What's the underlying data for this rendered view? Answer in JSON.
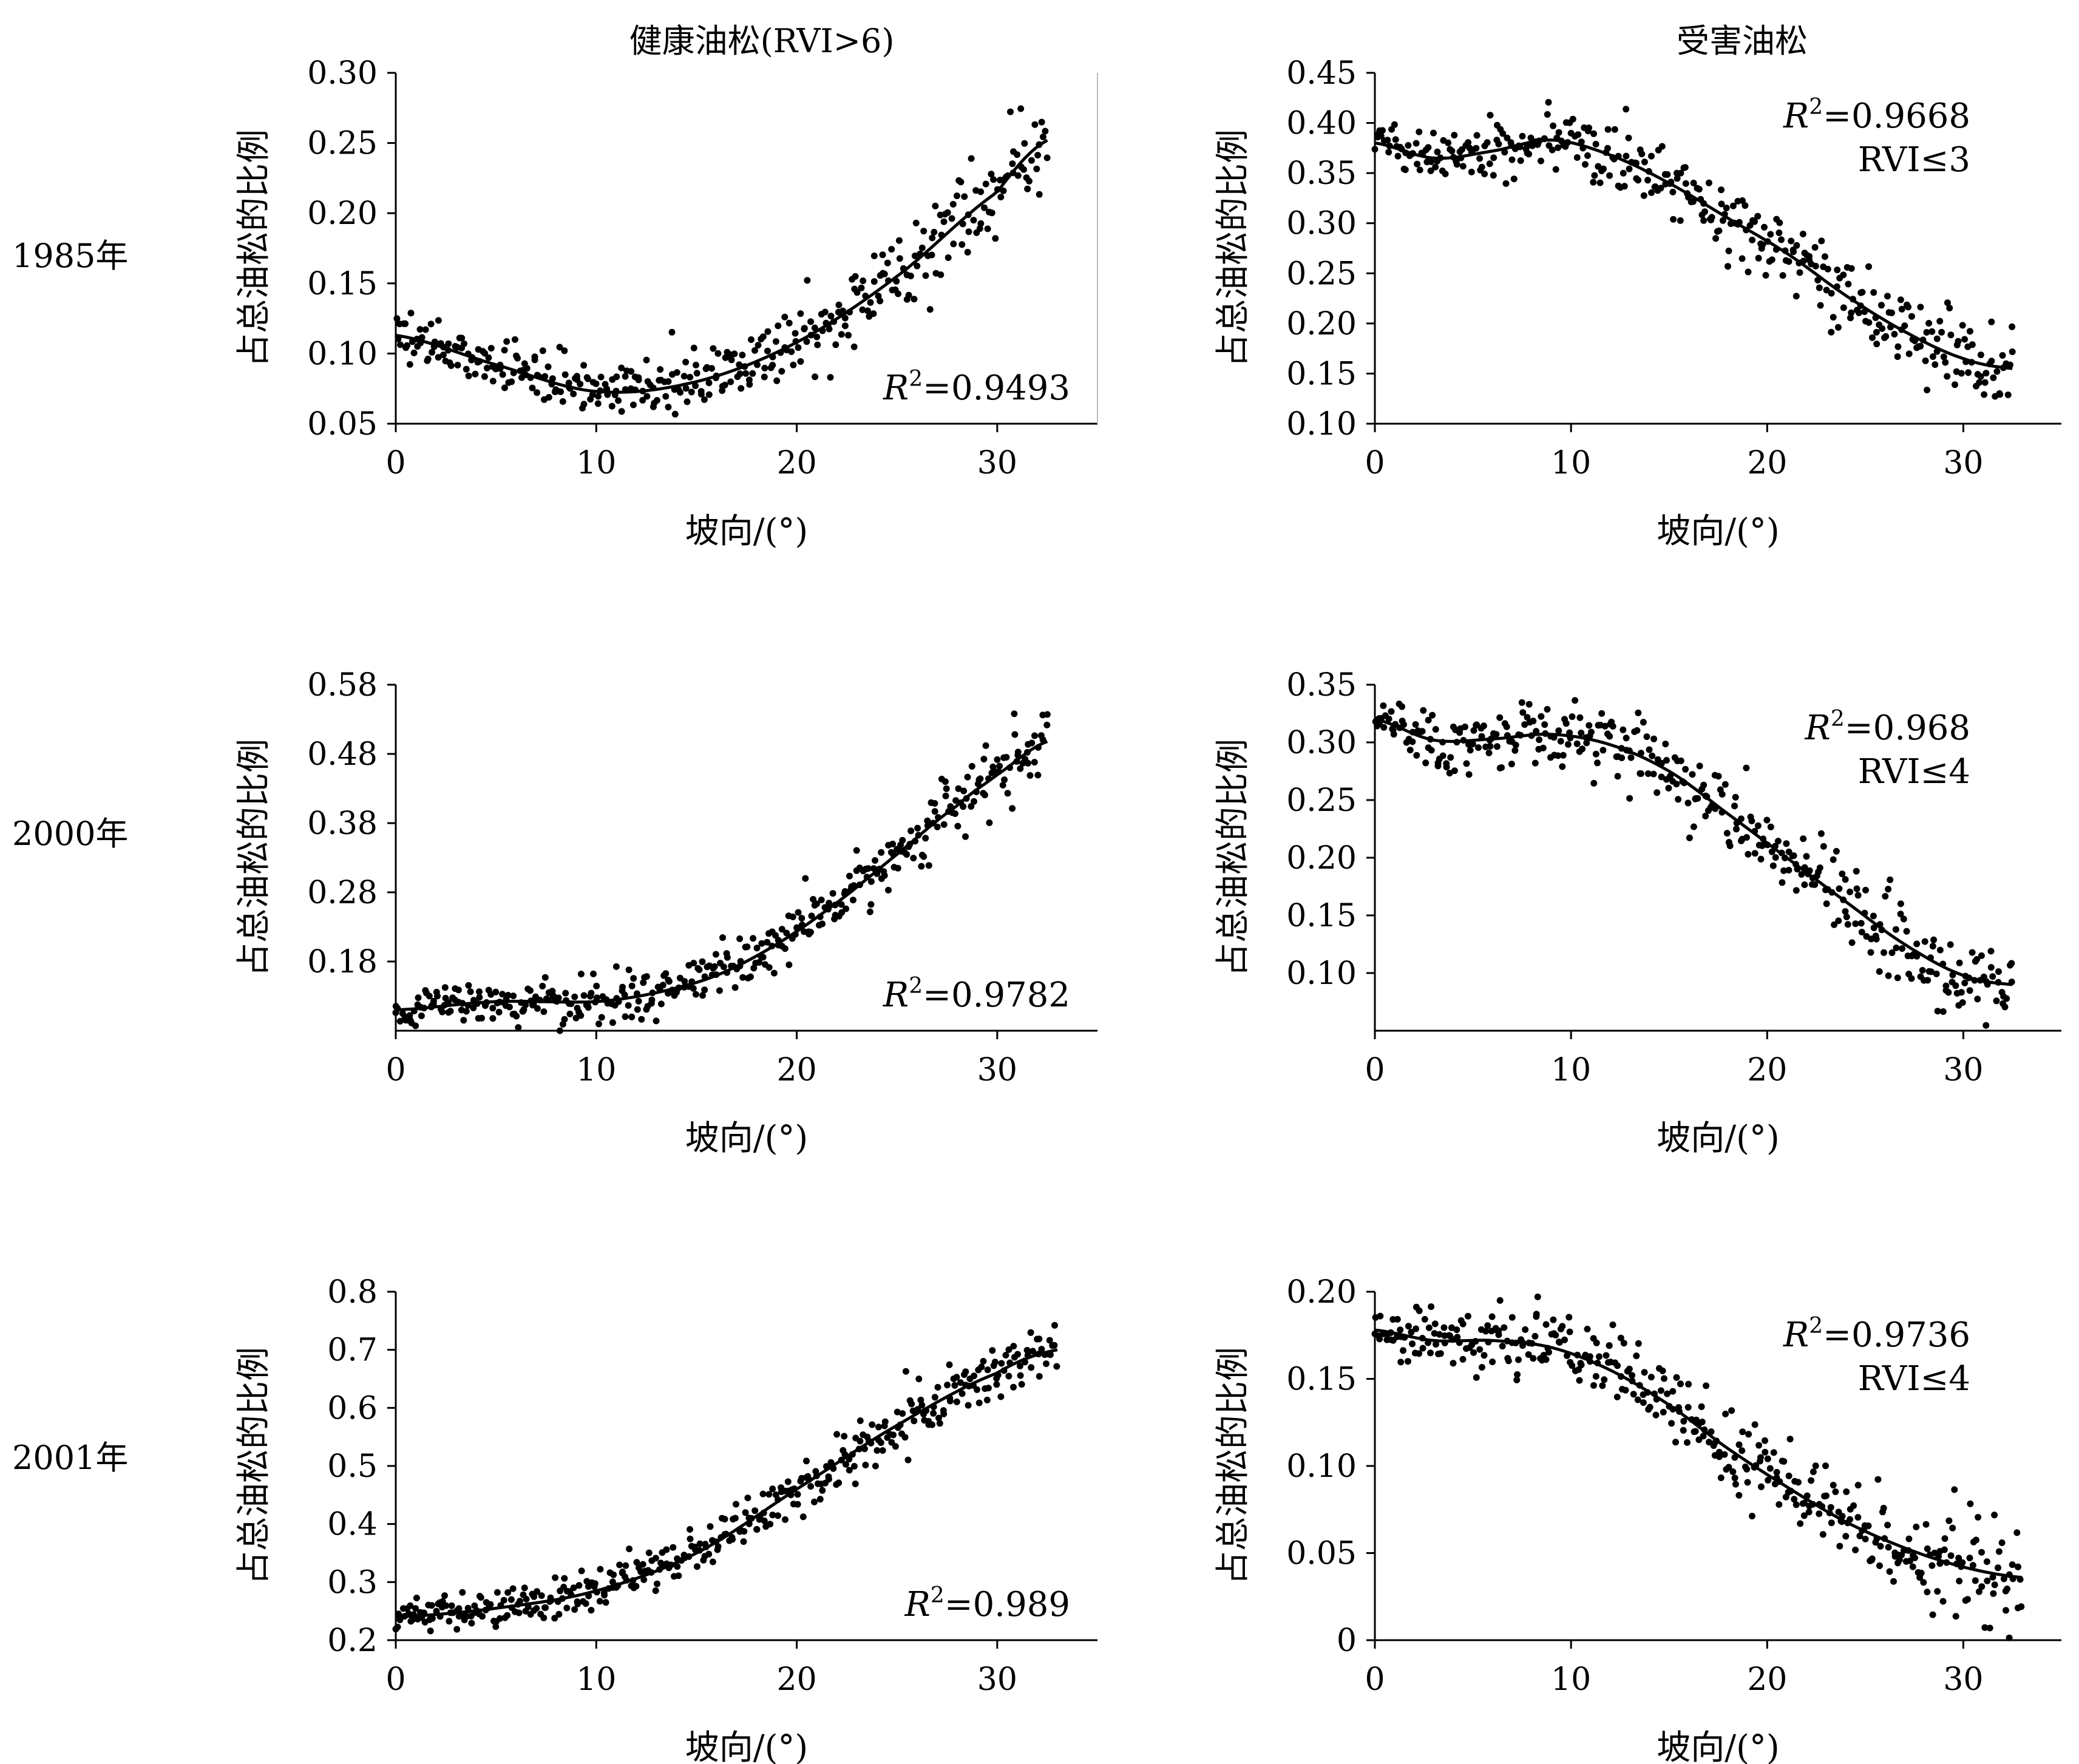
{
  "figure": {
    "col_titles": [
      "健康油松(RVI>6)",
      "受害油松"
    ],
    "row_labels": [
      "1985年",
      "2000年",
      "2001年"
    ]
  },
  "chart_data": [
    {
      "type": "scatter",
      "panel": "1985-healthy",
      "year": "1985年",
      "group": "健康油松(RVI>6)",
      "xlabel": "坡向/(°)",
      "ylabel": "占总油松的比例",
      "xlim": [
        0,
        35
      ],
      "ylim": [
        0.05,
        0.3
      ],
      "xticks": [
        "0",
        "10",
        "20",
        "30"
      ],
      "yticks": [
        "0.05",
        "0.10",
        "0.15",
        "0.20",
        "0.25",
        "0.30"
      ],
      "ytick_values": [
        0.05,
        0.1,
        0.15,
        0.2,
        0.25,
        0.3
      ],
      "r2_prefix": "R",
      "r2_sup": "2",
      "r2_value": "=0.9493",
      "rvi": "",
      "annotation_pos": "bottom-right",
      "trend": {
        "x": [
          0,
          5,
          10,
          15,
          20,
          25,
          30,
          32.5
        ],
        "y": [
          0.113,
          0.092,
          0.073,
          0.08,
          0.108,
          0.155,
          0.215,
          0.252
        ]
      },
      "scatter_n": 380,
      "scatter_spread": 0.008,
      "scatter_x_end": 32.5
    },
    {
      "type": "scatter",
      "panel": "1985-damaged",
      "year": "1985年",
      "group": "受害油松",
      "xlabel": "坡向/(°)",
      "ylabel": "占总油松的比例",
      "xlim": [
        0,
        35
      ],
      "ylim": [
        0.1,
        0.45
      ],
      "xticks": [
        "0",
        "10",
        "20",
        "30"
      ],
      "yticks": [
        "0.10",
        "0.15",
        "0.20",
        "0.25",
        "0.30",
        "0.35",
        "0.40",
        "0.45"
      ],
      "ytick_values": [
        0.1,
        0.15,
        0.2,
        0.25,
        0.3,
        0.35,
        0.4,
        0.45
      ],
      "r2_prefix": "R",
      "r2_sup": "2",
      "r2_value": "=0.9668",
      "rvi": "RVI≤3",
      "annotation_pos": "top-right",
      "trend": {
        "x": [
          0,
          3,
          6,
          9,
          12,
          15,
          18,
          21,
          24,
          27,
          30,
          32.5
        ],
        "y": [
          0.38,
          0.365,
          0.372,
          0.383,
          0.368,
          0.34,
          0.305,
          0.27,
          0.228,
          0.192,
          0.165,
          0.155
        ]
      },
      "scatter_n": 380,
      "scatter_spread": 0.012,
      "scatter_x_end": 32.5
    },
    {
      "type": "scatter",
      "panel": "2000-healthy",
      "year": "2000年",
      "group": "健康油松(RVI>6)",
      "xlabel": "坡向/(°)",
      "ylabel": "占总油松的比例",
      "xlim": [
        0,
        35
      ],
      "ylim": [
        0.08,
        0.58
      ],
      "xticks": [
        "0",
        "10",
        "20",
        "30"
      ],
      "yticks": [
        "0.18",
        "0.28",
        "0.38",
        "0.48",
        "0.58"
      ],
      "ytick_values": [
        0.18,
        0.28,
        0.38,
        0.48,
        0.58
      ],
      "r2_prefix": "R",
      "r2_sup": "2",
      "r2_value": "=0.9782",
      "rvi": "",
      "annotation_pos": "bottom-right",
      "trend": {
        "x": [
          0,
          5,
          10,
          13,
          16,
          19,
          22,
          25,
          28,
          30,
          32.5
        ],
        "y": [
          0.11,
          0.122,
          0.122,
          0.135,
          0.16,
          0.205,
          0.265,
          0.335,
          0.405,
          0.45,
          0.498
        ]
      },
      "scatter_n": 400,
      "scatter_spread": 0.013,
      "scatter_x_end": 32.5
    },
    {
      "type": "scatter",
      "panel": "2000-damaged",
      "year": "2000年",
      "group": "受害油松",
      "xlabel": "坡向/(°)",
      "ylabel": "占总油松的比例",
      "xlim": [
        0,
        35
      ],
      "ylim": [
        0.05,
        0.35
      ],
      "xticks": [
        "0",
        "10",
        "20",
        "30"
      ],
      "yticks": [
        "0.10",
        "0.15",
        "0.20",
        "0.25",
        "0.30",
        "0.35"
      ],
      "ytick_values": [
        0.1,
        0.15,
        0.2,
        0.25,
        0.3,
        0.35
      ],
      "r2_prefix": "R",
      "r2_sup": "2",
      "r2_value": "=0.968",
      "rvi": "RVI≤4",
      "annotation_pos": "top-right",
      "trend": {
        "x": [
          0,
          3,
          6,
          9,
          12,
          15,
          18,
          21,
          24,
          27,
          30,
          32.5
        ],
        "y": [
          0.32,
          0.302,
          0.303,
          0.307,
          0.298,
          0.275,
          0.238,
          0.2,
          0.162,
          0.125,
          0.098,
          0.09
        ]
      },
      "scatter_n": 380,
      "scatter_spread": 0.011,
      "scatter_x_end": 32.5
    },
    {
      "type": "scatter",
      "panel": "2001-healthy",
      "year": "2001年",
      "group": "健康油松(RVI>6)",
      "xlabel": "坡向/(°)",
      "ylabel": "占总油松的比例",
      "xlim": [
        0,
        35
      ],
      "ylim": [
        0.2,
        0.8
      ],
      "xticks": [
        "0",
        "10",
        "20",
        "30"
      ],
      "yticks": [
        "0.2",
        "0.3",
        "0.4",
        "0.5",
        "0.6",
        "0.7",
        "0.8"
      ],
      "ytick_values": [
        0.2,
        0.3,
        0.4,
        0.5,
        0.6,
        0.7,
        0.8
      ],
      "r2_prefix": "R",
      "r2_sup": "2",
      "r2_value": "=0.989",
      "rvi": "",
      "annotation_pos": "bottom-right",
      "trend": {
        "x": [
          0,
          5,
          10,
          15,
          20,
          25,
          30,
          33
        ],
        "y": [
          0.24,
          0.255,
          0.285,
          0.35,
          0.46,
          0.57,
          0.66,
          0.7
        ]
      },
      "scatter_n": 400,
      "scatter_spread": 0.015,
      "scatter_x_end": 33
    },
    {
      "type": "scatter",
      "panel": "2001-damaged",
      "year": "2001年",
      "group": "受害油松",
      "xlabel": "坡向/(°)",
      "ylabel": "占总油松的比例",
      "xlim": [
        0,
        35
      ],
      "ylim": [
        0,
        0.2
      ],
      "xticks": [
        "0",
        "10",
        "20",
        "30"
      ],
      "yticks": [
        "0",
        "0.05",
        "0.10",
        "0.15",
        "0.20"
      ],
      "ytick_values": [
        0,
        0.05,
        0.1,
        0.15,
        0.2
      ],
      "r2_prefix": "R",
      "r2_sup": "2",
      "r2_value": "=0.9736",
      "rvi": "RVI≤4",
      "annotation_pos": "top-right",
      "trend": {
        "x": [
          0,
          3,
          6,
          9,
          12,
          15,
          18,
          21,
          24,
          27,
          30,
          33
        ],
        "y": [
          0.178,
          0.172,
          0.172,
          0.168,
          0.155,
          0.135,
          0.11,
          0.088,
          0.068,
          0.053,
          0.042,
          0.036
        ]
      },
      "scatter_n": 400,
      "scatter_spread": 0.008,
      "scatter_x_end": 33
    }
  ]
}
